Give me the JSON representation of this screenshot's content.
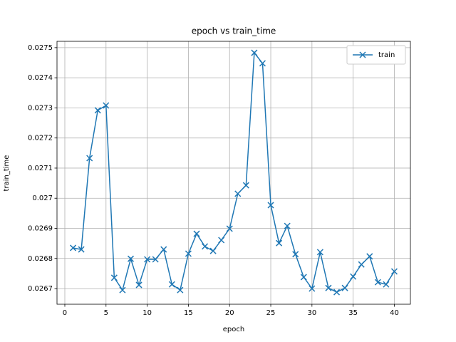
{
  "chart_data": {
    "type": "line",
    "title": "epoch vs train_time",
    "x_label": "epoch",
    "y_label": "train_time",
    "x": [
      1,
      2,
      3,
      4,
      5,
      6,
      7,
      8,
      9,
      10,
      11,
      12,
      13,
      14,
      15,
      16,
      17,
      18,
      19,
      20,
      21,
      22,
      23,
      24,
      25,
      26,
      27,
      28,
      29,
      30,
      31,
      32,
      33,
      34,
      35,
      36,
      37,
      38,
      39,
      40
    ],
    "series": [
      {
        "name": "train",
        "color": "#1f77b4",
        "marker": "x",
        "values": [
          0.026835,
          0.02683,
          0.027133,
          0.027292,
          0.027308,
          0.026736,
          0.026695,
          0.026799,
          0.026712,
          0.026797,
          0.026797,
          0.02683,
          0.026714,
          0.026695,
          0.026816,
          0.026882,
          0.02684,
          0.026825,
          0.026861,
          0.026899,
          0.027015,
          0.027043,
          0.027483,
          0.027448,
          0.026977,
          0.026851,
          0.026908,
          0.026814,
          0.026738,
          0.0267,
          0.026821,
          0.026702,
          0.026688,
          0.026702,
          0.02674,
          0.02678,
          0.026807,
          0.026721,
          0.026714,
          0.026757
        ]
      }
    ],
    "xlim": [
      -0.95,
      41.95
    ],
    "ylim": [
      0.026648,
      0.027521
    ],
    "xticks": [
      0,
      5,
      10,
      15,
      20,
      25,
      30,
      35,
      40
    ],
    "yticks": [
      0.0267,
      0.0268,
      0.0269,
      0.027,
      0.0271,
      0.0272,
      0.0273,
      0.0274,
      0.0275
    ],
    "grid": true,
    "legend": "upper right"
  }
}
